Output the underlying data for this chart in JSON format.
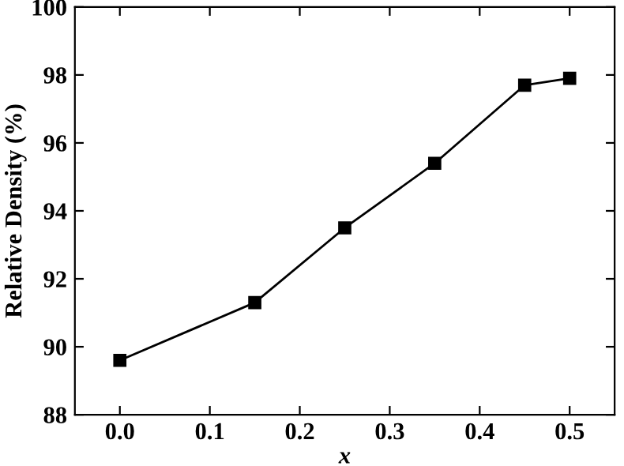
{
  "chart_data": {
    "type": "line",
    "xlabel": "x",
    "ylabel": "Relative Density (%)",
    "x": [
      0.0,
      0.15,
      0.25,
      0.35,
      0.45,
      0.5
    ],
    "series": [
      {
        "color": "#000000",
        "values": [
          89.6,
          91.3,
          93.5,
          95.4,
          97.7,
          97.9
        ]
      }
    ],
    "xlim": [
      -0.05,
      0.55
    ],
    "ylim": [
      88,
      100
    ],
    "xticks": [
      {
        "value": 0.0,
        "label": "0.0"
      },
      0.1,
      0.2,
      0.3,
      0.4,
      0.5
    ],
    "yticks": [
      88,
      90,
      92,
      94,
      96,
      98,
      100
    ],
    "marker": "square",
    "line_style": "solid",
    "grid": false,
    "legend": false
  }
}
